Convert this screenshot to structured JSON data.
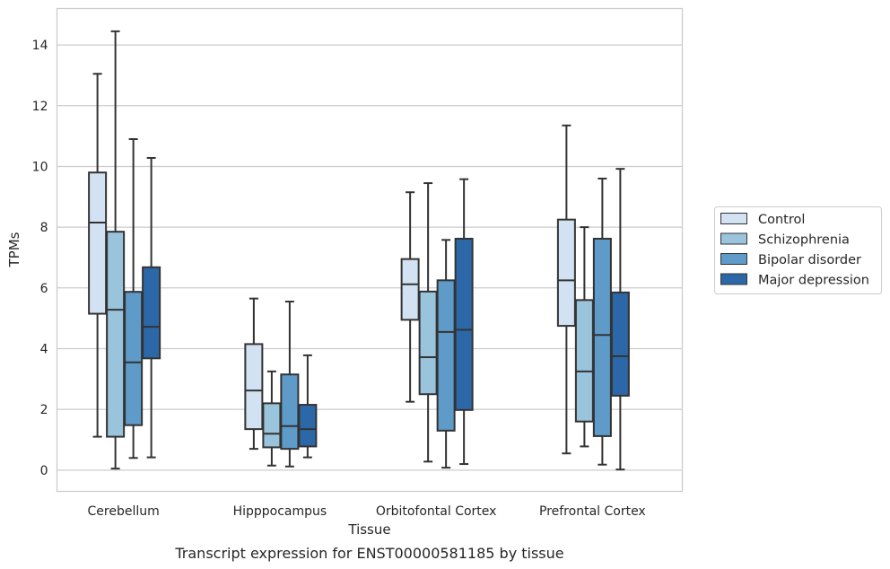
{
  "chart_data": {
    "type": "boxplot",
    "title": "",
    "caption": "Transcript expression for ENST00000581185 by tissue",
    "xlabel": "Tissue",
    "ylabel": "TPMs",
    "ylim": [
      -0.7,
      15.2
    ],
    "yticks": [
      0,
      2,
      4,
      6,
      8,
      10,
      12,
      14
    ],
    "ytick_labels": [
      "0",
      "2",
      "4",
      "6",
      "8",
      "10",
      "12",
      "14"
    ],
    "grid": "horizontal",
    "legend_position": "right",
    "categories": [
      "Cerebellum",
      "Hipppocampus",
      "Orbitofontal Cortex",
      "Prefrontal Cortex"
    ],
    "series": [
      {
        "name": "Control",
        "color": "#d3e2f2",
        "boxes": [
          {
            "whislo": 1.1,
            "q1": 5.15,
            "med": 8.15,
            "q3": 9.8,
            "whishi": 13.05
          },
          {
            "whislo": 0.7,
            "q1": 1.35,
            "med": 2.62,
            "q3": 4.15,
            "whishi": 5.65
          },
          {
            "whislo": 2.25,
            "q1": 4.95,
            "med": 6.12,
            "q3": 6.95,
            "whishi": 9.15
          },
          {
            "whislo": 0.55,
            "q1": 4.75,
            "med": 6.25,
            "q3": 8.25,
            "whishi": 11.35
          }
        ]
      },
      {
        "name": "Schizophrenia",
        "color": "#9ac3dc",
        "boxes": [
          {
            "whislo": 0.05,
            "q1": 1.1,
            "med": 5.28,
            "q3": 7.85,
            "whishi": 14.45
          },
          {
            "whislo": 0.15,
            "q1": 0.75,
            "med": 1.2,
            "q3": 2.2,
            "whishi": 3.25
          },
          {
            "whislo": 0.28,
            "q1": 2.5,
            "med": 3.72,
            "q3": 5.88,
            "whishi": 9.45
          },
          {
            "whislo": 0.78,
            "q1": 1.6,
            "med": 3.25,
            "q3": 5.6,
            "whishi": 8.0
          }
        ]
      },
      {
        "name": "Bipolar disorder",
        "color": "#5f9bc9",
        "boxes": [
          {
            "whislo": 0.4,
            "q1": 1.48,
            "med": 3.55,
            "q3": 5.87,
            "whishi": 10.9
          },
          {
            "whislo": 0.12,
            "q1": 0.7,
            "med": 1.45,
            "q3": 3.15,
            "whishi": 5.55
          },
          {
            "whislo": 0.08,
            "q1": 1.3,
            "med": 4.55,
            "q3": 6.25,
            "whishi": 7.58
          },
          {
            "whislo": 0.18,
            "q1": 1.12,
            "med": 4.45,
            "q3": 7.62,
            "whishi": 9.6
          }
        ]
      },
      {
        "name": "Major depression",
        "color": "#2c68a8",
        "boxes": [
          {
            "whislo": 0.42,
            "q1": 3.68,
            "med": 4.72,
            "q3": 6.68,
            "whishi": 10.28
          },
          {
            "whislo": 0.42,
            "q1": 0.78,
            "med": 1.35,
            "q3": 2.15,
            "whishi": 3.78
          },
          {
            "whislo": 0.2,
            "q1": 1.98,
            "med": 4.62,
            "q3": 7.62,
            "whishi": 9.58
          },
          {
            "whislo": 0.02,
            "q1": 2.45,
            "med": 3.75,
            "q3": 5.85,
            "whishi": 9.92
          }
        ]
      }
    ]
  }
}
